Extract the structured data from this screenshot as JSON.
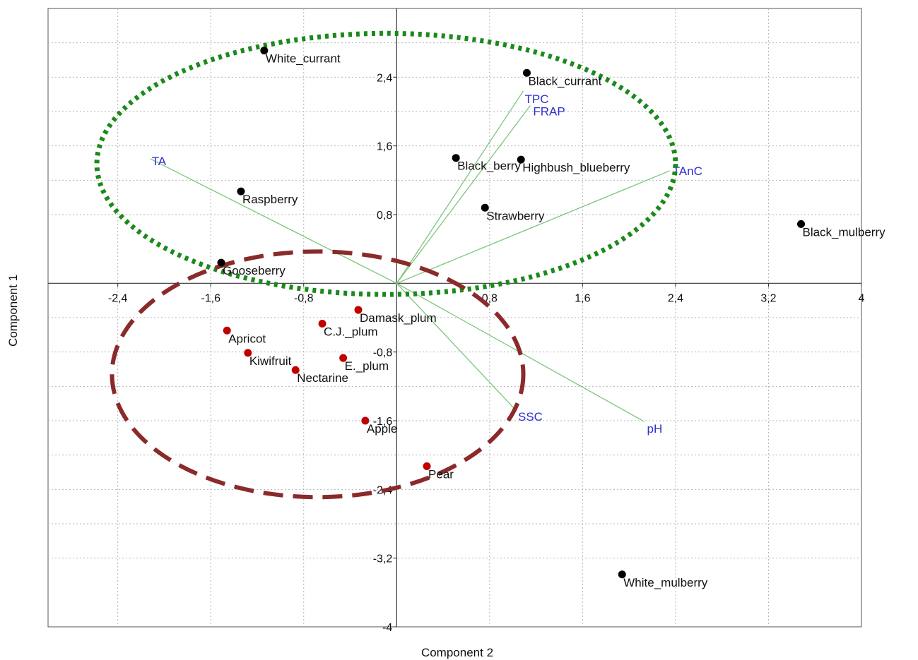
{
  "chart_data": {
    "type": "scatter",
    "xlabel": "Component 2",
    "ylabel": "Component 1",
    "xlim": [
      -3.0,
      4.0
    ],
    "ylim": [
      -4.0,
      3.2
    ],
    "xticks": [
      -2.4,
      -1.6,
      -0.8,
      0.8,
      1.6,
      2.4,
      3.2,
      4.0
    ],
    "xtick_labels": [
      "-2,4",
      "-1,6",
      "-0,8",
      "0,8",
      "1,6",
      "2,4",
      "3,2",
      "4"
    ],
    "yticks": [
      2.4,
      1.6,
      0.8,
      -0.8,
      -1.6,
      -2.4,
      -3.2,
      -4.0
    ],
    "ytick_labels": [
      "2,4",
      "1,6",
      "0,8",
      "-0,8",
      "-1,6",
      "-2,4",
      "-3,2",
      "-4"
    ],
    "grid": true,
    "colors": {
      "group_a": "#000000",
      "group_b": "#c00000",
      "loadings": "#7cc67c",
      "loading_labels": "#2f2fd0",
      "ellipse_a": "#1a8a1a",
      "ellipse_b": "#8b2a2a"
    },
    "series": [
      {
        "group": "a",
        "points": [
          {
            "label": "White_currant",
            "x": -1.14,
            "y": 2.71
          },
          {
            "label": "Black_currant",
            "x": 1.12,
            "y": 2.45
          },
          {
            "label": "Black_berry",
            "x": 0.51,
            "y": 1.46
          },
          {
            "label": "Highbush_blueberry",
            "x": 1.07,
            "y": 1.44
          },
          {
            "label": "Raspberry",
            "x": -1.34,
            "y": 1.07
          },
          {
            "label": "Strawberry",
            "x": 0.76,
            "y": 0.88
          },
          {
            "label": "Gooseberry",
            "x": -1.51,
            "y": 0.24
          },
          {
            "label": "Black_mulberry",
            "x": 3.48,
            "y": 0.69
          },
          {
            "label": "White_mulberry",
            "x": 1.94,
            "y": -3.39
          }
        ]
      },
      {
        "group": "b",
        "points": [
          {
            "label": "Damask_plum",
            "x": -0.33,
            "y": -0.31
          },
          {
            "label": "C.J._plum",
            "x": -0.64,
            "y": -0.47
          },
          {
            "label": "Apricot",
            "x": -1.46,
            "y": -0.55
          },
          {
            "label": "Kiwifruit",
            "x": -1.28,
            "y": -0.81
          },
          {
            "label": "E._plum",
            "x": -0.46,
            "y": -0.87
          },
          {
            "label": "Nectarine",
            "x": -0.87,
            "y": -1.01
          },
          {
            "label": "Apple",
            "x": -0.27,
            "y": -1.6
          },
          {
            "label": "Pear",
            "x": 0.26,
            "y": -2.13
          }
        ]
      }
    ],
    "loadings": [
      {
        "label": "TA",
        "x": -2.12,
        "y": 1.45
      },
      {
        "label": "TPC",
        "x": 1.09,
        "y": 2.24
      },
      {
        "label": "FRAP",
        "x": 1.15,
        "y": 2.07
      },
      {
        "label": "TAnC",
        "x": 2.35,
        "y": 1.31
      },
      {
        "label": "SSC",
        "x": 1.02,
        "y": -1.47
      },
      {
        "label": "pH",
        "x": 2.13,
        "y": -1.61
      }
    ],
    "groups": [
      {
        "group": "a",
        "cx": -0.09,
        "cy": 1.39,
        "rx": 2.49,
        "ry": 1.52
      },
      {
        "group": "b",
        "cx": -0.68,
        "cy": -1.06,
        "rx": 1.77,
        "ry": 1.43
      }
    ]
  }
}
